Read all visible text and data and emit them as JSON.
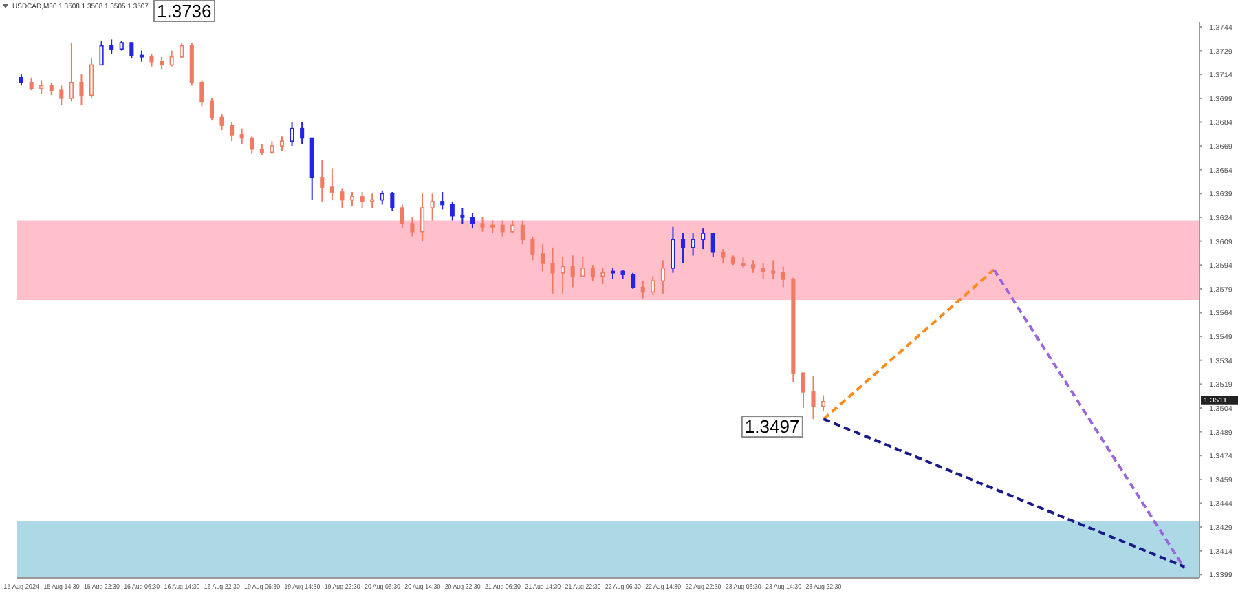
{
  "chart_data": {
    "type": "candlestick",
    "title": "USDCAD,M30  1.3508 1.3508 1.3505 1.3507",
    "categories": [
      "15 Aug 2024",
      null,
      null,
      null,
      "15 Aug 14:30",
      null,
      null,
      null,
      "15 Aug 22:30",
      null,
      null,
      null,
      "16 Aug 06:30",
      null,
      null,
      null,
      "16 Aug 14:30",
      null,
      null,
      null,
      "16 Aug 22:30",
      null,
      null,
      null,
      "19 Aug 06:30",
      null,
      null,
      null,
      "19 Aug 14:30",
      null,
      null,
      null,
      "19 Aug 22:30",
      null,
      null,
      null,
      "20 Aug 06:30",
      null,
      null,
      null,
      "20 Aug 14:30",
      null,
      null,
      null,
      "20 Aug 22:30",
      null,
      null,
      null,
      "21 Aug 06:30",
      null,
      null,
      null,
      "21 Aug 14:30",
      null,
      null,
      null,
      "21 Aug 22:30",
      null,
      null,
      null,
      "22 Aug 06:30",
      null,
      null,
      null,
      "22 Aug 14:30",
      null,
      null,
      null,
      "22 Aug 22:30",
      null,
      null,
      null,
      "23 Aug 06:30",
      null,
      null,
      null,
      "23 Aug 14:30",
      null,
      null,
      null,
      "23 Aug 22:30",
      null,
      null,
      null,
      null,
      null,
      null,
      null,
      null,
      null,
      null,
      null,
      null,
      null,
      null,
      null,
      null,
      null,
      null,
      null,
      null,
      null,
      null,
      null,
      null,
      null,
      null,
      null,
      null,
      null,
      null,
      null,
      null,
      null,
      null,
      null,
      null,
      null
    ],
    "ohlc": [
      [
        1.3712,
        1.3714,
        1.3707,
        1.3709
      ],
      [
        1.3709,
        1.3712,
        1.3704,
        1.3705
      ],
      [
        1.3705,
        1.371,
        1.3702,
        1.3707
      ],
      [
        1.3707,
        1.3709,
        1.3701,
        1.3704
      ],
      [
        1.3704,
        1.3707,
        1.3695,
        1.3699
      ],
      [
        1.3699,
        1.3734,
        1.3697,
        1.3709
      ],
      [
        1.3709,
        1.3714,
        1.3695,
        1.3701
      ],
      [
        1.3701,
        1.3724,
        1.3699,
        1.372
      ],
      [
        1.372,
        1.3735,
        1.372,
        1.3732
      ],
      [
        1.3732,
        1.3736,
        1.3727,
        1.373
      ],
      [
        1.373,
        1.3735,
        1.3729,
        1.3734
      ],
      [
        1.3734,
        1.3734,
        1.3724,
        1.3726
      ],
      [
        1.3726,
        1.3729,
        1.3722,
        1.3725
      ],
      [
        1.3725,
        1.3727,
        1.3719,
        1.3722
      ],
      [
        1.3722,
        1.3725,
        1.3717,
        1.372
      ],
      [
        1.372,
        1.3729,
        1.3719,
        1.3725
      ],
      [
        1.3725,
        1.3734,
        1.3724,
        1.3732
      ],
      [
        1.3732,
        1.3734,
        1.3707,
        1.3709
      ],
      [
        1.3709,
        1.371,
        1.3694,
        1.3697
      ],
      [
        1.3697,
        1.3699,
        1.3685,
        1.3687
      ],
      [
        1.3687,
        1.3689,
        1.3679,
        1.3682
      ],
      [
        1.3682,
        1.3684,
        1.3672,
        1.3676
      ],
      [
        1.3676,
        1.368,
        1.367,
        1.3674
      ],
      [
        1.3674,
        1.3675,
        1.3664,
        1.3667
      ],
      [
        1.3667,
        1.367,
        1.3663,
        1.3665
      ],
      [
        1.3665,
        1.3672,
        1.3664,
        1.3669
      ],
      [
        1.3669,
        1.3675,
        1.3666,
        1.3672
      ],
      [
        1.3672,
        1.3684,
        1.3669,
        1.368
      ],
      [
        1.368,
        1.3684,
        1.367,
        1.3674
      ],
      [
        1.3674,
        1.3674,
        1.3635,
        1.3649
      ],
      [
        1.3649,
        1.366,
        1.3634,
        1.3643
      ],
      [
        1.3643,
        1.3655,
        1.3635,
        1.364
      ],
      [
        1.364,
        1.3642,
        1.363,
        1.3635
      ],
      [
        1.3635,
        1.364,
        1.3631,
        1.3637
      ],
      [
        1.3637,
        1.364,
        1.363,
        1.3634
      ],
      [
        1.3634,
        1.3639,
        1.363,
        1.3635
      ],
      [
        1.3635,
        1.3641,
        1.3632,
        1.3639
      ],
      [
        1.3639,
        1.364,
        1.3628,
        1.363
      ],
      [
        1.363,
        1.3632,
        1.3617,
        1.362
      ],
      [
        1.362,
        1.3624,
        1.3612,
        1.3615
      ],
      [
        1.3615,
        1.3639,
        1.3609,
        1.363
      ],
      [
        1.363,
        1.3639,
        1.3622,
        1.3634
      ],
      [
        1.3634,
        1.364,
        1.3629,
        1.3632
      ],
      [
        1.3632,
        1.3634,
        1.3622,
        1.3625
      ],
      [
        1.3625,
        1.363,
        1.362,
        1.3624
      ],
      [
        1.3624,
        1.3627,
        1.3617,
        1.362
      ],
      [
        1.362,
        1.3624,
        1.3615,
        1.3618
      ],
      [
        1.3618,
        1.3622,
        1.3614,
        1.3619
      ],
      [
        1.3619,
        1.3622,
        1.3612,
        1.3615
      ],
      [
        1.3615,
        1.3622,
        1.3614,
        1.3619
      ],
      [
        1.3619,
        1.3622,
        1.3607,
        1.361
      ],
      [
        1.361,
        1.3612,
        1.3597,
        1.3601
      ],
      [
        1.3601,
        1.3607,
        1.359,
        1.3595
      ],
      [
        1.3595,
        1.3605,
        1.3576,
        1.3589
      ],
      [
        1.3589,
        1.3599,
        1.3576,
        1.3593
      ],
      [
        1.3593,
        1.36,
        1.358,
        1.3587
      ],
      [
        1.3587,
        1.3599,
        1.3587,
        1.3592
      ],
      [
        1.3592,
        1.3594,
        1.3584,
        1.3587
      ],
      [
        1.3587,
        1.3592,
        1.3582,
        1.3589
      ],
      [
        1.3589,
        1.3592,
        1.3585,
        1.359
      ],
      [
        1.359,
        1.3591,
        1.3585,
        1.3588
      ],
      [
        1.3588,
        1.3589,
        1.3579,
        1.358
      ],
      [
        1.358,
        1.3584,
        1.3573,
        1.3577
      ],
      [
        1.3577,
        1.3587,
        1.3575,
        1.3584
      ],
      [
        1.3584,
        1.3597,
        1.3576,
        1.3592
      ],
      [
        1.3592,
        1.3618,
        1.3589,
        1.361
      ],
      [
        1.361,
        1.3614,
        1.3595,
        1.3605
      ],
      [
        1.3605,
        1.3614,
        1.36,
        1.361
      ],
      [
        1.361,
        1.3617,
        1.3604,
        1.3614
      ],
      [
        1.3614,
        1.3614,
        1.3599,
        1.3602
      ],
      [
        1.3602,
        1.3604,
        1.3595,
        1.3599
      ],
      [
        1.3599,
        1.36,
        1.3594,
        1.3595
      ],
      [
        1.3595,
        1.3599,
        1.3592,
        1.3594
      ],
      [
        1.3594,
        1.3597,
        1.3589,
        1.3592
      ],
      [
        1.3592,
        1.3595,
        1.3585,
        1.359
      ],
      [
        1.359,
        1.3597,
        1.3585,
        1.3589
      ],
      [
        1.3589,
        1.3593,
        1.358,
        1.3585
      ],
      [
        1.3585,
        1.3586,
        1.352,
        1.3526
      ],
      [
        1.3526,
        1.3526,
        1.3504,
        1.3514
      ],
      [
        1.3514,
        1.3524,
        1.3497,
        1.3505
      ],
      [
        1.3505,
        1.3512,
        1.3502,
        1.3508
      ],
      null,
      null,
      null,
      null,
      null,
      null,
      null,
      null,
      null,
      null,
      null,
      null,
      null,
      null,
      null,
      null,
      null,
      null,
      null,
      null,
      null,
      null,
      null,
      null,
      null,
      null,
      null,
      null,
      null,
      null,
      null,
      null,
      null,
      null,
      null,
      null,
      null
    ],
    "colors": [
      "#2424e8",
      "#f07a62",
      "#f07a62",
      "#f07a62",
      "#f07a62",
      "#f07a62",
      "#f07a62",
      "#f07a62",
      "#2424e8",
      "#2424e8",
      "#2424e8",
      "#2424e8",
      "#2424e8",
      "#f07a62",
      "#f07a62",
      "#f07a62",
      "#f07a62",
      "#f07a62",
      "#f07a62",
      "#f07a62",
      "#f07a62",
      "#f07a62",
      "#f07a62",
      "#f07a62",
      "#f07a62",
      "#f07a62",
      "#f07a62",
      "#2424e8",
      "#2424e8",
      "#2424e8",
      "#f07a62",
      "#f07a62",
      "#f07a62",
      "#f07a62",
      "#f07a62",
      "#f07a62",
      "#2424e8",
      "#2424e8",
      "#f07a62",
      "#f07a62",
      "#f07a62",
      "#f07a62",
      "#2424e8",
      "#2424e8",
      "#2424e8",
      "#2424e8",
      "#f07a62",
      "#f07a62",
      "#f07a62",
      "#f07a62",
      "#f07a62",
      "#f07a62",
      "#f07a62",
      "#f07a62",
      "#f07a62",
      "#f07a62",
      "#f07a62",
      "#f07a62",
      "#f07a62",
      "#2424e8",
      "#2424e8",
      "#2424e8",
      "#f07a62",
      "#f07a62",
      "#f07a62",
      "#2424e8",
      "#2424e8",
      "#2424e8",
      "#2424e8",
      "#2424e8",
      "#f07a62",
      "#f07a62",
      "#f07a62",
      "#f07a62",
      "#f07a62",
      "#f07a62",
      "#f07a62",
      "#f07a62",
      "#f07a62",
      "#f07a62",
      "#f07a62",
      null,
      null,
      null,
      null,
      null,
      null,
      null,
      null,
      null,
      null,
      null,
      null,
      null,
      null,
      null,
      null,
      null,
      null,
      null,
      null,
      null,
      null,
      null,
      null,
      null,
      null,
      null,
      null,
      null,
      null,
      null,
      null,
      null,
      null,
      null,
      null,
      null
    ],
    "series": [
      {
        "type": "line",
        "color": "#ff8c1a",
        "line_style": "dashed",
        "values": [
          null,
          null,
          null,
          null,
          null,
          null,
          null,
          null,
          null,
          null,
          null,
          null,
          null,
          null,
          null,
          null,
          null,
          null,
          null,
          null,
          null,
          null,
          null,
          null,
          null,
          null,
          null,
          null,
          null,
          null,
          null,
          null,
          null,
          null,
          null,
          null,
          null,
          null,
          null,
          null,
          null,
          null,
          null,
          null,
          null,
          null,
          null,
          null,
          null,
          null,
          null,
          null,
          null,
          null,
          null,
          null,
          null,
          null,
          null,
          null,
          null,
          null,
          null,
          null,
          null,
          null,
          null,
          null,
          null,
          null,
          null,
          null,
          null,
          null,
          null,
          null,
          null,
          null,
          null,
          null,
          1.3497,
          null,
          null,
          null,
          null,
          null,
          null,
          null,
          null,
          null,
          null,
          null,
          null,
          null,
          null,
          null,
          null,
          1.3591,
          null,
          null,
          null,
          null,
          null,
          null,
          null,
          null,
          null,
          null,
          null,
          null,
          null,
          null,
          null,
          null,
          null,
          null,
          null,
          null
        ]
      },
      {
        "type": "line",
        "color": "#9966dd",
        "line_style": "dashed",
        "values": [
          null,
          null,
          null,
          null,
          null,
          null,
          null,
          null,
          null,
          null,
          null,
          null,
          null,
          null,
          null,
          null,
          null,
          null,
          null,
          null,
          null,
          null,
          null,
          null,
          null,
          null,
          null,
          null,
          null,
          null,
          null,
          null,
          null,
          null,
          null,
          null,
          null,
          null,
          null,
          null,
          null,
          null,
          null,
          null,
          null,
          null,
          null,
          null,
          null,
          null,
          null,
          null,
          null,
          null,
          null,
          null,
          null,
          null,
          null,
          null,
          null,
          null,
          null,
          null,
          null,
          null,
          null,
          null,
          null,
          null,
          null,
          null,
          null,
          null,
          null,
          null,
          null,
          null,
          null,
          null,
          null,
          null,
          null,
          null,
          null,
          null,
          null,
          null,
          null,
          null,
          null,
          null,
          null,
          null,
          null,
          null,
          null,
          1.3591,
          null,
          null,
          null,
          null,
          null,
          null,
          null,
          null,
          null,
          null,
          null,
          null,
          null,
          null,
          null,
          null,
          null,
          null,
          1.3403,
          null
        ]
      },
      {
        "type": "line",
        "color": "#1a1a8c",
        "line_style": "dashed",
        "values": [
          null,
          null,
          null,
          null,
          null,
          null,
          null,
          null,
          null,
          null,
          null,
          null,
          null,
          null,
          null,
          null,
          null,
          null,
          null,
          null,
          null,
          null,
          null,
          null,
          null,
          null,
          null,
          null,
          null,
          null,
          null,
          null,
          null,
          null,
          null,
          null,
          null,
          null,
          null,
          null,
          null,
          null,
          null,
          null,
          null,
          null,
          null,
          null,
          null,
          null,
          null,
          null,
          null,
          null,
          null,
          null,
          null,
          null,
          null,
          null,
          null,
          null,
          null,
          null,
          null,
          null,
          null,
          null,
          null,
          null,
          null,
          null,
          null,
          null,
          null,
          null,
          null,
          null,
          null,
          null,
          1.3497,
          null,
          null,
          null,
          null,
          null,
          null,
          null,
          null,
          null,
          null,
          null,
          null,
          null,
          null,
          null,
          null,
          null,
          null,
          null,
          null,
          null,
          null,
          null,
          null,
          null,
          null,
          null,
          null,
          null,
          null,
          null,
          null,
          null,
          null,
          null,
          1.3404,
          null
        ]
      }
    ],
    "ylim": [
      1.3397,
      1.3747
    ],
    "yticks": [
      1.3744,
      1.3729,
      1.3714,
      1.3699,
      1.3684,
      1.3669,
      1.3654,
      1.3639,
      1.3624,
      1.3609,
      1.3594,
      1.3579,
      1.3564,
      1.3549,
      1.3534,
      1.3519,
      1.3504,
      1.3489,
      1.3474,
      1.3459,
      1.3444,
      1.3429,
      1.3414,
      1.3399
    ],
    "bands": [
      {
        "axis": "y",
        "from": 1.3572,
        "to": 1.3622,
        "color": "#ffc0cb"
      },
      {
        "axis": "y",
        "from": 1.3397,
        "to": 1.3433,
        "color": "#add8e6"
      }
    ],
    "annotations": [
      "1.3736",
      "1.3497",
      "1.3511"
    ]
  }
}
